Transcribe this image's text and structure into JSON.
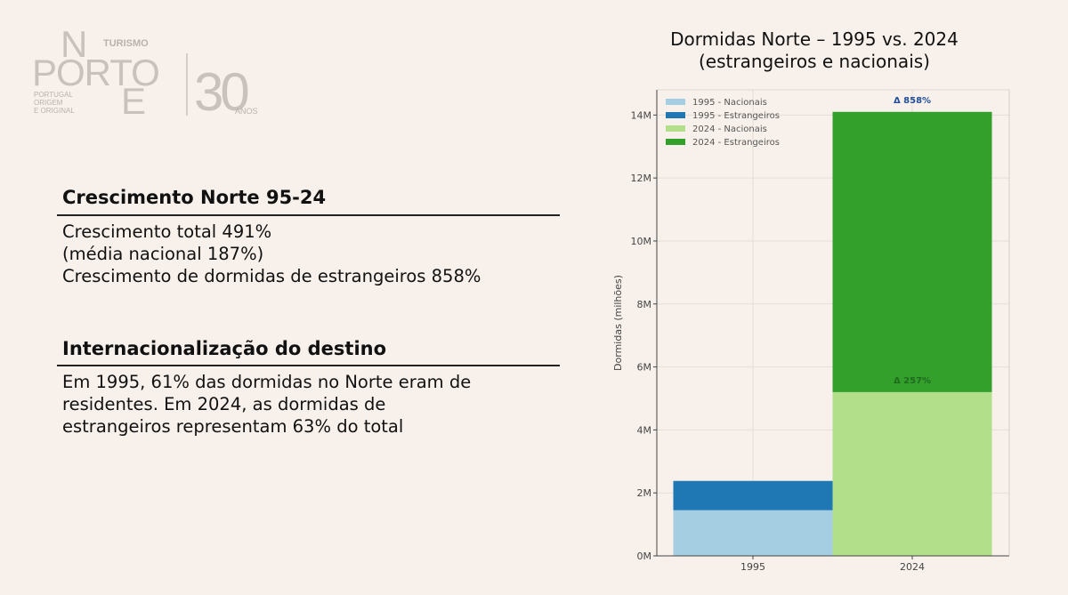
{
  "logo": {
    "big_letters": [
      "N",
      "PORTO",
      "E"
    ],
    "turismo": "TURISMO",
    "tagline": [
      "PORTUGAL",
      "ORIGEM",
      "E ORIGINAL"
    ],
    "anniversary_number": "30",
    "anniversary_word": "ANOS"
  },
  "section1": {
    "title": "Crescimento Norte 95-24",
    "lines": [
      "Crescimento total 491%",
      "(média nacional 187%)",
      "Crescimento de dormidas de estrangeiros 858%"
    ]
  },
  "section2": {
    "title": "Internacionalização do destino",
    "lines": [
      "Em 1995, 61% das dormidas no Norte eram de",
      "residentes. Em 2024, as dormidas de",
      "estrangeiros representam 63% do total"
    ]
  },
  "colors": {
    "background": "#f8f1eb",
    "n1995": "#a6cee3",
    "e1995": "#1f78b4",
    "n2024": "#b2df8a",
    "e2024": "#33a02c",
    "delta_blue": "#1f4e9a",
    "delta_green": "#1e6b1e"
  },
  "chart_data": {
    "type": "bar",
    "stacked": true,
    "title": [
      "Dormidas Norte – 1995 vs. 2024",
      "(estrangeiros e nacionais)"
    ],
    "categories": [
      "1995",
      "2024"
    ],
    "series": [
      {
        "name": "Nacionais",
        "values": [
          1.45,
          5.2
        ]
      },
      {
        "name": "Estrangeiros",
        "values": [
          0.93,
          8.9
        ]
      }
    ],
    "legend": [
      "1995 - Nacionais",
      "1995 - Estrangeiros",
      "2024 - Nacionais",
      "2024 - Estrangeiros"
    ],
    "legend_position": "top-left",
    "ylabel": "Dormidas (milhões)",
    "ylim": [
      0,
      14.8
    ],
    "yticks": [
      0,
      2,
      4,
      6,
      8,
      10,
      12,
      14
    ],
    "ytick_labels": [
      "0M",
      "2M",
      "4M",
      "6M",
      "8M",
      "10M",
      "12M",
      "14M"
    ],
    "grid": true,
    "annotations": [
      "Δ 858%",
      "Δ 257%"
    ]
  }
}
